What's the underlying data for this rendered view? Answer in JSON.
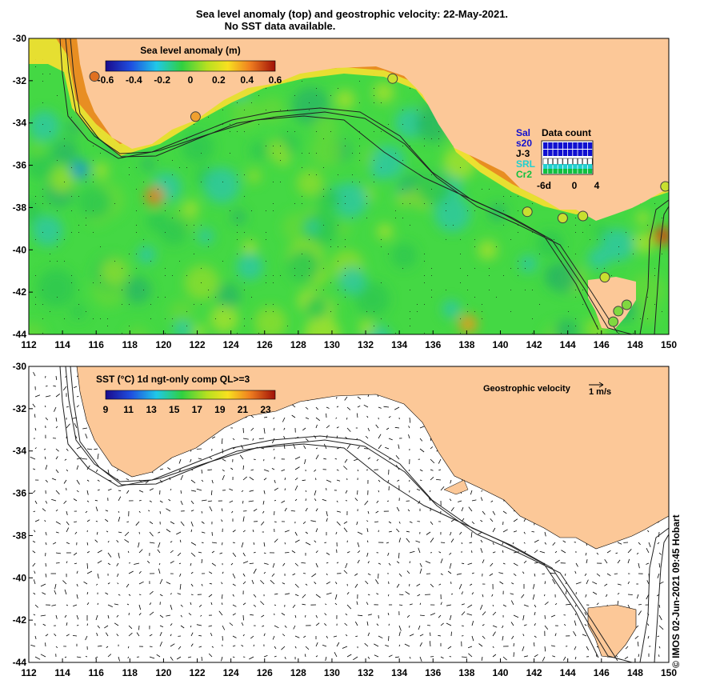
{
  "title": {
    "line1": "Sea level anomaly (top) and geostrophic velocity: 22-May-2021.",
    "line2": "No SST data available."
  },
  "axes": {
    "lon_ticks": [
      "112",
      "114",
      "116",
      "118",
      "120",
      "122",
      "124",
      "126",
      "128",
      "130",
      "132",
      "134",
      "136",
      "138",
      "140",
      "142",
      "144",
      "146",
      "148",
      "150"
    ],
    "lat_ticks": [
      "-30",
      "-32",
      "-34",
      "-36",
      "-38",
      "-40",
      "-42",
      "-44"
    ]
  },
  "sla_legend": {
    "title": "Sea level anomaly (m)",
    "ticks": [
      "-0.6",
      "-0.4",
      "-0.2",
      "0",
      "0.2",
      "0.4",
      "0.6"
    ]
  },
  "sst_legend": {
    "title": "SST (°C) 1d ngt-only comp QL>=3",
    "ticks": [
      "9",
      "11",
      "13",
      "15",
      "17",
      "19",
      "21",
      "23"
    ]
  },
  "data_count": {
    "title": "Data count",
    "satellites": [
      "Sal",
      "s20",
      "J-3",
      "SRL",
      "Cr2"
    ],
    "sat_colors": [
      "#1010d0",
      "#1010d0",
      "#000000",
      "#20d0d0",
      "#10c040"
    ],
    "x_ticks": [
      "-6d",
      "0",
      "4"
    ]
  },
  "velocity_legend": {
    "label": "Geostrophic velocity",
    "scale": "1 m/s"
  },
  "credit": "© IMOS 02-Jun-2021 09:45 Hobart",
  "colors": {
    "land": "#fcc898",
    "ocean_base": "#44d844",
    "ocean_light": "#80e050",
    "contour": "#202020"
  },
  "stations": [
    {
      "lon": 115.9,
      "lat": -31.8,
      "anomaly": 0.45
    },
    {
      "lon": 121.9,
      "lat": -33.7,
      "anomaly": 0.35
    },
    {
      "lon": 133.6,
      "lat": -31.9,
      "anomaly": 0.15
    },
    {
      "lon": 141.6,
      "lat": -38.2,
      "anomaly": 0.15
    },
    {
      "lon": 143.7,
      "lat": -38.5,
      "anomaly": 0.15
    },
    {
      "lon": 144.9,
      "lat": -38.4,
      "anomaly": 0.15
    },
    {
      "lon": 146.2,
      "lat": -41.3,
      "anomaly": 0.15
    },
    {
      "lon": 147.0,
      "lat": -42.9,
      "anomaly": 0.1
    },
    {
      "lon": 147.5,
      "lat": -42.6,
      "anomaly": 0.1
    },
    {
      "lon": 146.7,
      "lat": -43.4,
      "anomaly": 0.1
    },
    {
      "lon": 149.8,
      "lat": -37.0,
      "anomaly": 0.15
    }
  ]
}
